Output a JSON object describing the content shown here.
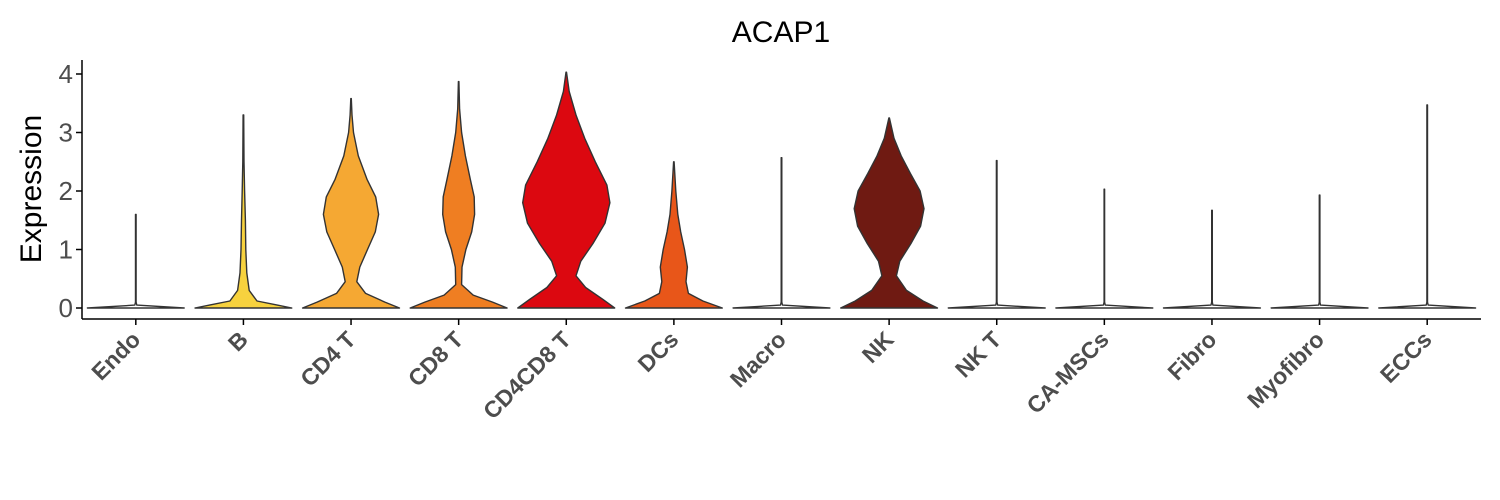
{
  "chart_data": {
    "type": "violin",
    "title": "ACAP1",
    "xlabel": "",
    "ylabel": "Expression",
    "ylim": [
      -0.2,
      4.25
    ],
    "yticks": [
      0,
      1,
      2,
      3,
      4
    ],
    "grid": false,
    "legend": "none",
    "categories": [
      "Endo",
      "B",
      "CD4 T",
      "CD8 T",
      "CD4CD8 T",
      "DCs",
      "Macro",
      "NK",
      "NK T",
      "CA-MSCs",
      "Fibro",
      "Myofibro",
      "ECCs"
    ],
    "series": [
      {
        "category": "Endo",
        "color": "#FFFFFF",
        "max": 1.6,
        "profile": [
          [
            0,
            1
          ],
          [
            0.05,
            0.02
          ],
          [
            0.1,
            0.006
          ],
          [
            1.6,
            0.006
          ]
        ]
      },
      {
        "category": "B",
        "color": "#F7D23E",
        "max": 3.3,
        "profile": [
          [
            0,
            1
          ],
          [
            0.05,
            0.7
          ],
          [
            0.12,
            0.28
          ],
          [
            0.3,
            0.12
          ],
          [
            0.6,
            0.07
          ],
          [
            1.0,
            0.05
          ],
          [
            1.5,
            0.04
          ],
          [
            2.0,
            0.025
          ],
          [
            2.5,
            0.012
          ],
          [
            3.3,
            0.006
          ]
        ]
      },
      {
        "category": "CD4 T",
        "color": "#F5A833",
        "max": 3.58,
        "profile": [
          [
            0,
            1
          ],
          [
            0.1,
            0.7
          ],
          [
            0.25,
            0.3
          ],
          [
            0.45,
            0.12
          ],
          [
            0.7,
            0.18
          ],
          [
            1.0,
            0.34
          ],
          [
            1.3,
            0.5
          ],
          [
            1.6,
            0.57
          ],
          [
            1.9,
            0.51
          ],
          [
            2.2,
            0.33
          ],
          [
            2.6,
            0.15
          ],
          [
            3.0,
            0.05
          ],
          [
            3.3,
            0.02
          ],
          [
            3.58,
            0.005
          ]
        ]
      },
      {
        "category": "CD8 T",
        "color": "#EF7E22",
        "max": 3.87,
        "profile": [
          [
            0,
            1
          ],
          [
            0.1,
            0.7
          ],
          [
            0.22,
            0.3
          ],
          [
            0.4,
            0.06
          ],
          [
            0.7,
            0.07
          ],
          [
            1.0,
            0.15
          ],
          [
            1.3,
            0.27
          ],
          [
            1.6,
            0.33
          ],
          [
            1.9,
            0.32
          ],
          [
            2.2,
            0.24
          ],
          [
            2.6,
            0.14
          ],
          [
            3.0,
            0.06
          ],
          [
            3.4,
            0.02
          ],
          [
            3.87,
            0.005
          ]
        ]
      },
      {
        "category": "CD4CD8 T",
        "color": "#DC0810",
        "max": 4.03,
        "profile": [
          [
            0,
            1
          ],
          [
            0.15,
            0.75
          ],
          [
            0.35,
            0.4
          ],
          [
            0.55,
            0.2
          ],
          [
            0.8,
            0.3
          ],
          [
            1.1,
            0.55
          ],
          [
            1.45,
            0.8
          ],
          [
            1.8,
            0.9
          ],
          [
            2.1,
            0.84
          ],
          [
            2.5,
            0.6
          ],
          [
            2.9,
            0.38
          ],
          [
            3.3,
            0.2
          ],
          [
            3.7,
            0.06
          ],
          [
            4.03,
            0.005
          ]
        ]
      },
      {
        "category": "DCs",
        "color": "#E85619",
        "max": 2.5,
        "profile": [
          [
            0,
            1
          ],
          [
            0.12,
            0.6
          ],
          [
            0.25,
            0.3
          ],
          [
            0.45,
            0.25
          ],
          [
            0.7,
            0.28
          ],
          [
            1.0,
            0.22
          ],
          [
            1.3,
            0.14
          ],
          [
            1.6,
            0.08
          ],
          [
            2.0,
            0.04
          ],
          [
            2.5,
            0.005
          ]
        ]
      },
      {
        "category": "Macro",
        "color": "#FFFFFF",
        "max": 2.57,
        "profile": [
          [
            0,
            1
          ],
          [
            0.05,
            0.02
          ],
          [
            0.1,
            0.006
          ],
          [
            2.57,
            0.006
          ]
        ]
      },
      {
        "category": "NK",
        "color": "#6F1A12",
        "max": 3.25,
        "profile": [
          [
            0,
            1
          ],
          [
            0.12,
            0.7
          ],
          [
            0.3,
            0.36
          ],
          [
            0.55,
            0.15
          ],
          [
            0.8,
            0.22
          ],
          [
            1.1,
            0.45
          ],
          [
            1.4,
            0.65
          ],
          [
            1.7,
            0.72
          ],
          [
            2.0,
            0.64
          ],
          [
            2.3,
            0.44
          ],
          [
            2.6,
            0.25
          ],
          [
            2.9,
            0.1
          ],
          [
            3.25,
            0.005
          ]
        ]
      },
      {
        "category": "NK T",
        "color": "#FFFFFF",
        "max": 2.52,
        "profile": [
          [
            0,
            1
          ],
          [
            0.05,
            0.02
          ],
          [
            0.1,
            0.006
          ],
          [
            2.52,
            0.006
          ]
        ]
      },
      {
        "category": "CA-MSCs",
        "color": "#FFFFFF",
        "max": 2.03,
        "profile": [
          [
            0,
            1
          ],
          [
            0.05,
            0.02
          ],
          [
            0.1,
            0.006
          ],
          [
            2.03,
            0.006
          ]
        ]
      },
      {
        "category": "Fibro",
        "color": "#FFFFFF",
        "max": 1.67,
        "profile": [
          [
            0,
            1
          ],
          [
            0.05,
            0.02
          ],
          [
            0.1,
            0.006
          ],
          [
            1.67,
            0.006
          ]
        ]
      },
      {
        "category": "Myofibro",
        "color": "#FFFFFF",
        "max": 1.93,
        "profile": [
          [
            0,
            1
          ],
          [
            0.05,
            0.02
          ],
          [
            0.1,
            0.006
          ],
          [
            1.93,
            0.006
          ]
        ]
      },
      {
        "category": "ECCs",
        "color": "#FFFFFF",
        "max": 3.47,
        "profile": [
          [
            0,
            1
          ],
          [
            0.05,
            0.02
          ],
          [
            0.1,
            0.006
          ],
          [
            3.47,
            0.006
          ]
        ]
      }
    ]
  }
}
